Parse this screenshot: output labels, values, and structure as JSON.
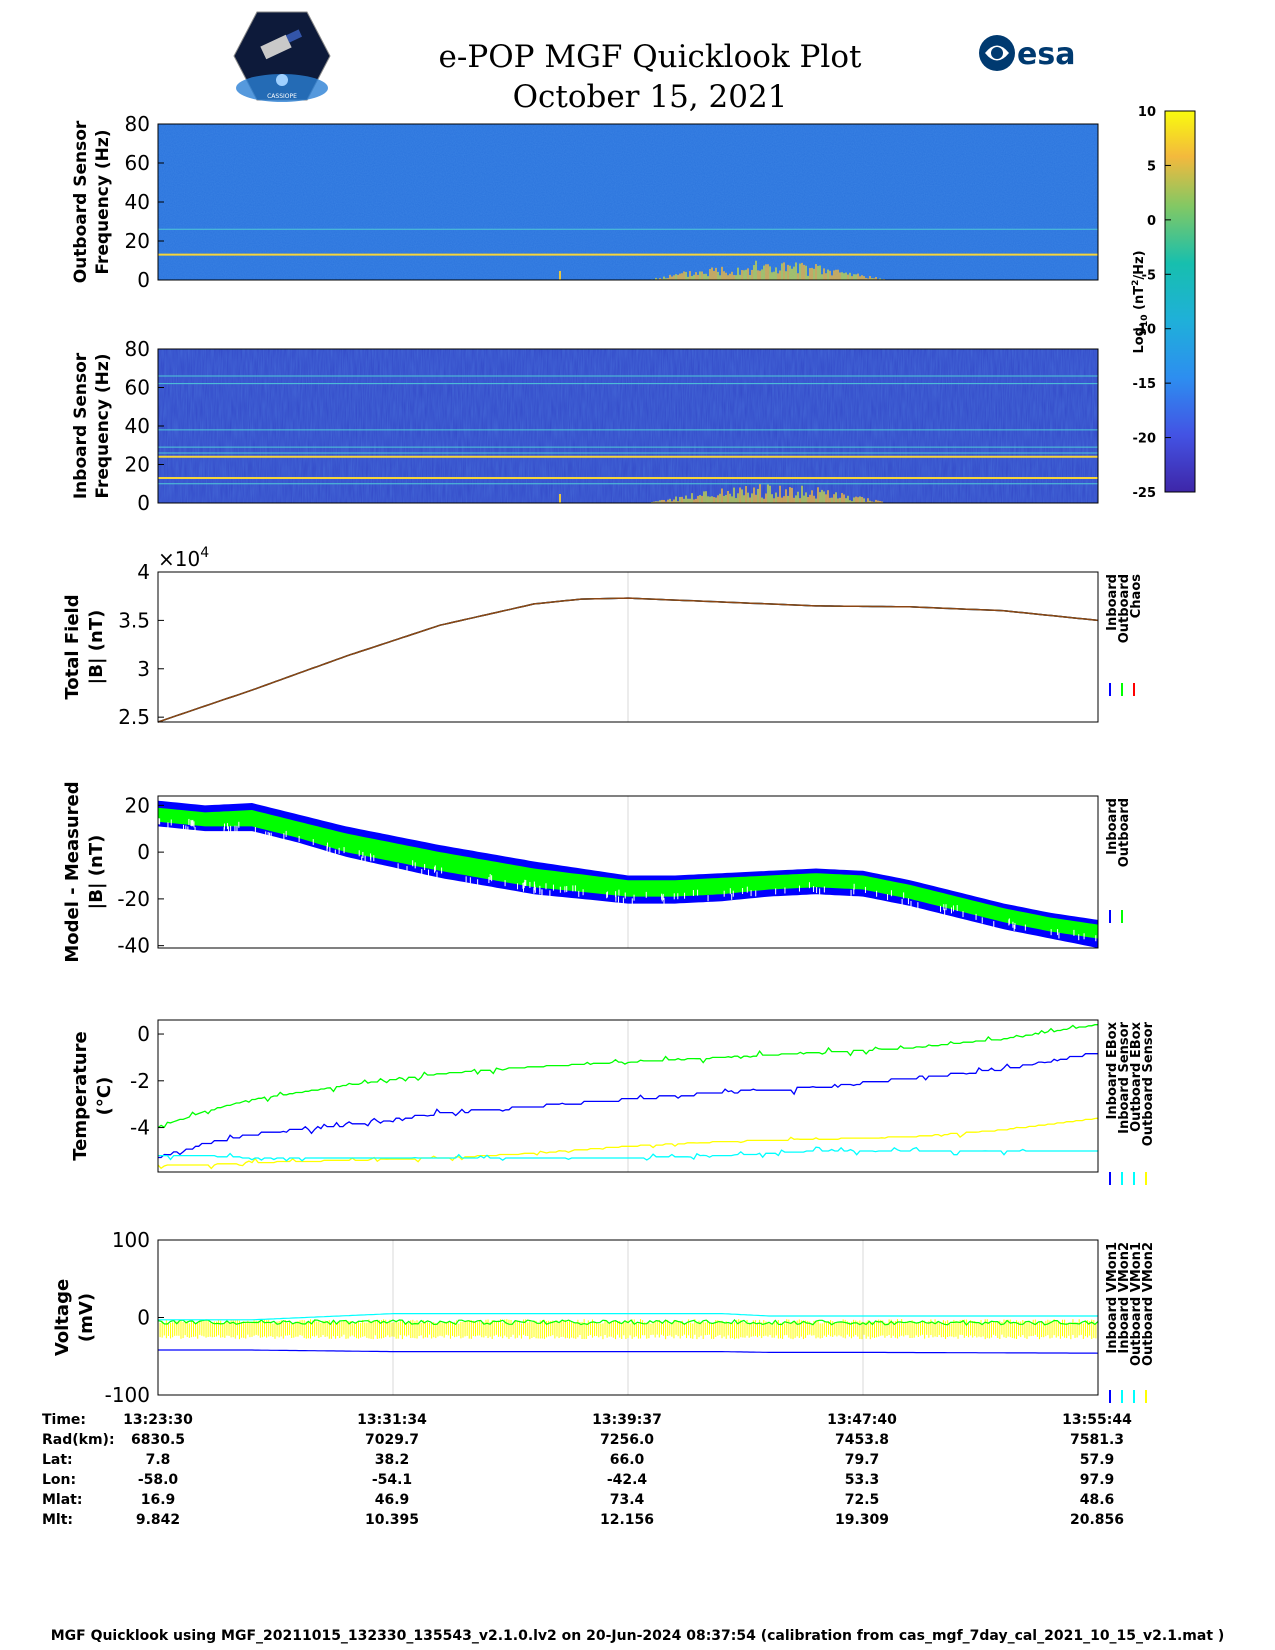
{
  "header": {
    "title_line1": "e-POP MGF Quicklook Plot",
    "title_line2": "October 15, 2021",
    "logo_left_text": "CASSIOPE",
    "logo_right_text": "esa"
  },
  "colors": {
    "inboard": "#0000ff",
    "outboard": "#00ff00",
    "chaos": "#ff0000",
    "vmon_cyan": "#00ffff",
    "vmon_yellow": "#ffff00"
  },
  "chart_data": [
    {
      "id": "outboard_spectrogram",
      "type": "heatmap",
      "ylabel": [
        "Outboard Sensor",
        "Frequency (Hz)"
      ],
      "ylim": [
        0,
        80
      ],
      "yticks": [
        0,
        20,
        40,
        60,
        80
      ],
      "lines_hz": [
        13,
        26
      ],
      "activity_note": "high power below ~10 Hz around 13:37-13:49"
    },
    {
      "id": "inboard_spectrogram",
      "type": "heatmap",
      "ylabel": [
        "Inboard Sensor",
        "Frequency (Hz)"
      ],
      "ylim": [
        0,
        80
      ],
      "yticks": [
        0,
        20,
        40,
        60,
        80
      ],
      "lines_hz": [
        10,
        13,
        24,
        26,
        29,
        38,
        62,
        66
      ]
    },
    {
      "id": "colorbar",
      "type": "heatmap",
      "label": "Log10 (nT^2/Hz)",
      "label_main": "Log",
      "label_sub": "10",
      "label_rest": " (nT",
      "label_sup": "2",
      "label_end": "/Hz)",
      "clim": [
        -25,
        10
      ],
      "ticks": [
        "10",
        "5",
        "0",
        "-5",
        "-10",
        "-15",
        "-20",
        "-25"
      ]
    },
    {
      "id": "total_field",
      "type": "line",
      "ylabel": [
        "Total Field",
        "|B| (nT)"
      ],
      "ylim": [
        2.45,
        4.0
      ],
      "yticks": [
        "4",
        "3.5",
        "3",
        "2.5"
      ],
      "ytick_values": [
        4.0,
        3.5,
        3.0,
        2.5
      ],
      "exponent_base": "×10",
      "exponent": "4",
      "x_frac": [
        0.0,
        0.1,
        0.2,
        0.3,
        0.4,
        0.45,
        0.5,
        0.6,
        0.7,
        0.8,
        0.9,
        1.0
      ],
      "series": [
        {
          "name": "Inboard",
          "values": [
            2.45,
            2.78,
            3.13,
            3.45,
            3.67,
            3.72,
            3.73,
            3.69,
            3.65,
            3.64,
            3.6,
            3.5
          ]
        },
        {
          "name": "Outboard",
          "values": [
            2.45,
            2.78,
            3.13,
            3.45,
            3.67,
            3.72,
            3.73,
            3.69,
            3.65,
            3.64,
            3.6,
            3.5
          ]
        },
        {
          "name": "Chaos",
          "values": [
            2.45,
            2.78,
            3.13,
            3.45,
            3.67,
            3.72,
            3.73,
            3.69,
            3.65,
            3.64,
            3.6,
            3.5
          ]
        }
      ],
      "legend": [
        "Inboard",
        "Outboard",
        "Chaos"
      ]
    },
    {
      "id": "model_minus_measured",
      "type": "area",
      "ylabel": [
        "Model - Measured",
        "|B| (nT)"
      ],
      "ylim": [
        -41,
        24
      ],
      "yticks": [
        "20",
        "0",
        "-20",
        "-40"
      ],
      "ytick_values": [
        20,
        0,
        -20,
        -40
      ],
      "x_frac": [
        0.0,
        0.05,
        0.1,
        0.15,
        0.2,
        0.3,
        0.4,
        0.5,
        0.55,
        0.6,
        0.65,
        0.7,
        0.75,
        0.8,
        0.85,
        0.9,
        0.95,
        1.0
      ],
      "series": [
        {
          "name": "Inboard",
          "upper": [
            22,
            20,
            21,
            16,
            11,
            3,
            -4,
            -10,
            -10,
            -9,
            -8,
            -7,
            -8,
            -12,
            -17,
            -22,
            -26,
            -29
          ],
          "lower": [
            11,
            9,
            9,
            4,
            -2,
            -11,
            -18,
            -22,
            -22,
            -21,
            -19,
            -18,
            -19,
            -23,
            -28,
            -33,
            -37,
            -41
          ]
        },
        {
          "name": "Outboard",
          "upper": [
            19,
            17,
            18,
            13,
            8,
            0,
            -7,
            -12,
            -12,
            -11,
            -10,
            -9,
            -10,
            -14,
            -19,
            -24,
            -28,
            -31
          ],
          "lower": [
            13,
            11,
            11,
            6,
            0,
            -8,
            -15,
            -19,
            -19,
            -18,
            -16,
            -15,
            -16,
            -20,
            -25,
            -30,
            -34,
            -37
          ]
        }
      ],
      "legend": [
        "Inboard",
        "Outboard"
      ]
    },
    {
      "id": "temperature",
      "type": "line",
      "ylabel": [
        "Temperature",
        "(°C)"
      ],
      "ylim": [
        -5.9,
        0.6
      ],
      "yticks": [
        "0",
        "-2",
        "-4"
      ],
      "ytick_values": [
        0,
        -2,
        -4
      ],
      "x_frac": [
        0.0,
        0.05,
        0.1,
        0.2,
        0.3,
        0.4,
        0.5,
        0.6,
        0.7,
        0.8,
        0.9,
        1.0
      ],
      "series": [
        {
          "name": "Inboard EBox",
          "values": [
            -4.0,
            -3.3,
            -2.8,
            -2.2,
            -1.7,
            -1.4,
            -1.2,
            -1.0,
            -0.8,
            -0.6,
            -0.2,
            0.4
          ]
        },
        {
          "name": "Inboard Sensor",
          "values": [
            -5.3,
            -4.7,
            -4.3,
            -3.9,
            -3.4,
            -3.1,
            -2.8,
            -2.5,
            -2.3,
            -1.9,
            -1.5,
            -0.8
          ]
        },
        {
          "name": "Outboard EBox",
          "values": [
            -5.6,
            -5.6,
            -5.5,
            -5.4,
            -5.3,
            -5.1,
            -4.8,
            -4.6,
            -4.5,
            -4.4,
            -4.1,
            -3.6
          ]
        },
        {
          "name": "Outboard Sensor",
          "values": [
            -5.2,
            -5.2,
            -5.3,
            -5.3,
            -5.3,
            -5.3,
            -5.3,
            -5.2,
            -5.0,
            -5.0,
            -5.0,
            -5.0
          ]
        }
      ],
      "legend": [
        "Inboard EBox",
        "Inboard Sensor",
        "Outboard EBox",
        "Outboard Sensor"
      ]
    },
    {
      "id": "voltage",
      "type": "line",
      "ylabel": [
        "Voltage",
        "(mV)"
      ],
      "ylim": [
        -100,
        100
      ],
      "yticks": [
        "100",
        "0",
        "-100"
      ],
      "ytick_values": [
        100,
        0,
        -100
      ],
      "x_frac": [
        0.0,
        0.1,
        0.25,
        0.5,
        0.6,
        0.65,
        0.75,
        1.0
      ],
      "series": [
        {
          "name": "Inboard VMon1",
          "values": [
            -42,
            -42,
            -44,
            -44,
            -44,
            -45,
            -45,
            -46
          ]
        },
        {
          "name": "Inboard VMon2",
          "values": [
            -6,
            -6,
            -6,
            -6,
            -6,
            -6,
            -7,
            -7
          ]
        },
        {
          "name": "Outboard VMon1",
          "values": [
            -3,
            -3,
            5,
            5,
            5,
            2,
            2,
            2
          ]
        },
        {
          "name": "Outboard VMon2",
          "values": [
            -16,
            -16,
            -16,
            -16,
            -16,
            -16,
            -16,
            -16
          ]
        }
      ],
      "legend": [
        "Inboard VMon1",
        "Inboard VMon2",
        "Outboard VMon1",
        "Outboard VMon2"
      ]
    }
  ],
  "ephemeris": {
    "labels": [
      "Time:",
      "Rad(km):",
      "Lat:",
      "Lon:",
      "Mlat:",
      "Mlt:"
    ],
    "columns": [
      [
        "13:23:30",
        "6830.5",
        "7.8",
        "-58.0",
        "16.9",
        "9.842"
      ],
      [
        "13:31:34",
        "7029.7",
        "38.2",
        "-54.1",
        "46.9",
        "10.395"
      ],
      [
        "13:39:37",
        "7256.0",
        "66.0",
        "-42.4",
        "73.4",
        "12.156"
      ],
      [
        "13:47:40",
        "7453.8",
        "79.7",
        "53.3",
        "72.5",
        "19.309"
      ],
      [
        "13:55:44",
        "7581.3",
        "57.9",
        "97.9",
        "48.6",
        "20.856"
      ]
    ]
  },
  "footer": {
    "text": "MGF Quicklook using MGF_20211015_132330_135543_v2.1.0.lv2 on 20-Jun-2024 08:37:54 (calibration from cas_mgf_7day_cal_2021_10_15_v2.1.mat )"
  }
}
